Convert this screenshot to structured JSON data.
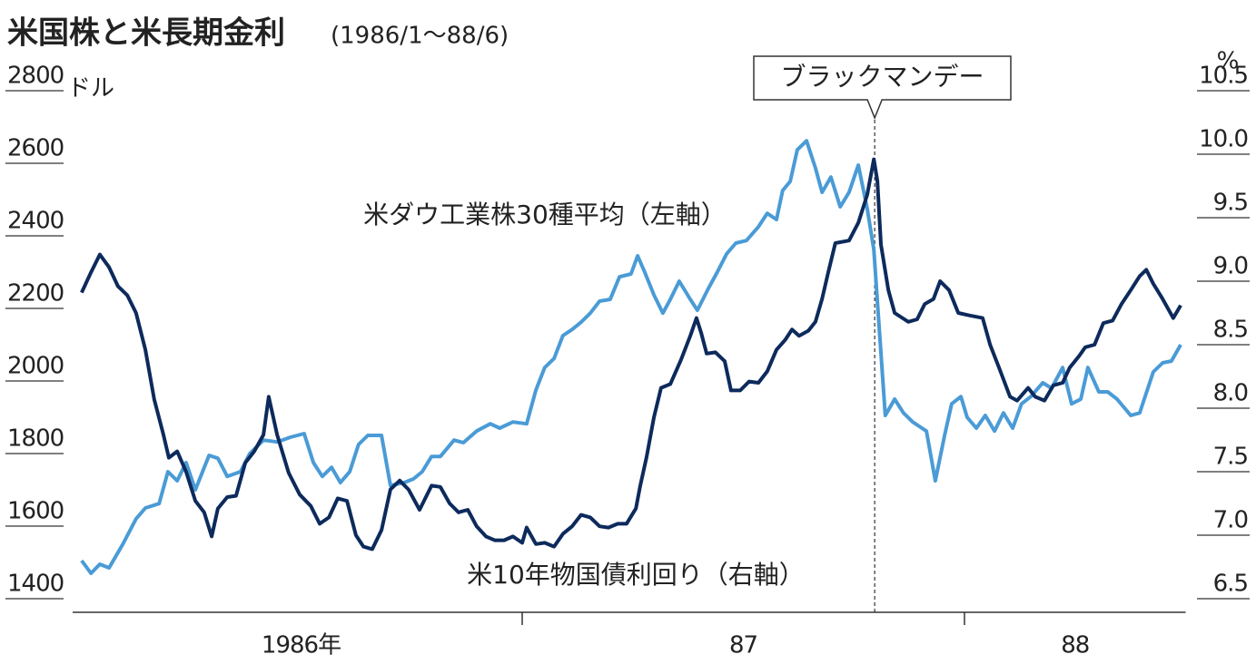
{
  "chart_data": {
    "type": "line",
    "title": "米国株と米長期金利",
    "subtitle": "(1986/1〜88/6)",
    "y_unit": "ドル",
    "y2_unit": "%",
    "xlim": [
      1986,
      1988.5
    ],
    "xticks": [
      1987,
      1988
    ],
    "xlabels": [
      {
        "value": 1986.5,
        "label": "1986年"
      },
      {
        "value": 1987.5,
        "label": "87"
      },
      {
        "value": 1988.25,
        "label": "88"
      }
    ],
    "ylim": [
      1400,
      2800
    ],
    "yticks": [
      1400,
      1600,
      1800,
      2000,
      2200,
      2400,
      2600,
      2800
    ],
    "y2lim": [
      6.5,
      10.5
    ],
    "y2ticks": [
      6.5,
      {
        "value": 7,
        "label": "7.0"
      },
      7.5,
      {
        "value": 8,
        "label": "8.0"
      },
      8.5,
      {
        "value": 9,
        "label": "9.0"
      },
      9.5,
      {
        "value": 10,
        "label": "10.0"
      },
      10.5
    ],
    "event": {
      "label": "ブラックマンデー",
      "x": 1987.797
    },
    "series": [
      {
        "name": "米ダウ工業株30種平均（左軸）",
        "color": "#4a9bd6",
        "x": [
          1986.004,
          1986.025,
          1986.045,
          1986.066,
          1986.097,
          1986.127,
          1986.148,
          1986.179,
          1986.199,
          1986.22,
          1986.24,
          1986.261,
          1986.292,
          1986.312,
          1986.333,
          1986.363,
          1986.384,
          1986.415,
          1986.446,
          1986.476,
          1986.507,
          1986.528,
          1986.548,
          1986.569,
          1986.589,
          1986.61,
          1986.63,
          1986.651,
          1986.682,
          1986.702,
          1986.733,
          1986.754,
          1986.774,
          1986.795,
          1986.815,
          1986.846,
          1986.867,
          1986.897,
          1986.928,
          1986.949,
          1986.979,
          1987.01,
          1987.031,
          1987.051,
          1987.072,
          1987.092,
          1987.113,
          1987.133,
          1987.154,
          1987.175,
          1987.199,
          1987.22,
          1987.246,
          1987.261,
          1987.277,
          1987.298,
          1987.318,
          1987.335,
          1987.355,
          1987.38,
          1987.396,
          1987.421,
          1987.441,
          1987.462,
          1987.483,
          1987.507,
          1987.534,
          1987.554,
          1987.575,
          1987.589,
          1987.606,
          1987.622,
          1987.643,
          1987.663,
          1987.678,
          1987.698,
          1987.719,
          1987.739,
          1987.76,
          1987.78,
          1987.795,
          1987.807,
          1987.821,
          1987.842,
          1987.862,
          1987.883,
          1987.904,
          1987.914,
          1987.934,
          1987.955,
          1987.971,
          1987.992,
          1988.006,
          1988.027,
          1988.047,
          1988.068,
          1988.088,
          1988.109,
          1988.129,
          1988.15,
          1988.177,
          1988.197,
          1988.222,
          1988.242,
          1988.263,
          1988.279,
          1988.304,
          1988.324,
          1988.345,
          1988.376,
          1988.396,
          1988.427,
          1988.448,
          1988.468,
          1988.489
        ],
        "values": [
          1505,
          1470,
          1495,
          1485,
          1550,
          1620,
          1650,
          1662,
          1750,
          1725,
          1775,
          1700,
          1795,
          1787,
          1737,
          1750,
          1800,
          1837,
          1832,
          1845,
          1855,
          1775,
          1737,
          1762,
          1720,
          1750,
          1825,
          1850,
          1850,
          1712,
          1720,
          1730,
          1750,
          1792,
          1792,
          1837,
          1830,
          1862,
          1882,
          1870,
          1887,
          1882,
          1975,
          2037,
          2062,
          2125,
          2142,
          2162,
          2187,
          2220,
          2225,
          2287,
          2295,
          2345,
          2300,
          2237,
          2187,
          2225,
          2275,
          2225,
          2195,
          2255,
          2300,
          2350,
          2380,
          2387,
          2425,
          2462,
          2445,
          2525,
          2550,
          2637,
          2662,
          2587,
          2520,
          2562,
          2480,
          2520,
          2595,
          2475,
          2362,
          2150,
          1905,
          1950,
          1912,
          1887,
          1870,
          1862,
          1725,
          1850,
          1937,
          1957,
          1900,
          1870,
          1905,
          1862,
          1912,
          1870,
          1937,
          1957,
          1995,
          1980,
          2037,
          1937,
          1950,
          2037,
          1970,
          1970,
          1950,
          1905,
          1912,
          2025,
          2050,
          2055,
          2100
        ]
      },
      {
        "name": "米10年物国債利回り（右軸）",
        "color": "#0d2a5c",
        "axis": "y2",
        "x": [
          1986.004,
          1986.025,
          1986.045,
          1986.066,
          1986.086,
          1986.107,
          1986.127,
          1986.148,
          1986.168,
          1986.189,
          1986.201,
          1986.22,
          1986.24,
          1986.261,
          1986.281,
          1986.298,
          1986.312,
          1986.333,
          1986.353,
          1986.374,
          1986.394,
          1986.415,
          1986.427,
          1986.446,
          1986.472,
          1986.497,
          1986.522,
          1986.542,
          1986.563,
          1986.583,
          1986.604,
          1986.624,
          1986.641,
          1986.661,
          1986.682,
          1986.702,
          1986.723,
          1986.743,
          1986.768,
          1986.795,
          1986.815,
          1986.836,
          1986.856,
          1986.877,
          1986.897,
          1986.918,
          1986.938,
          1986.959,
          1986.979,
          1987.0,
          1987.01,
          1987.031,
          1987.051,
          1987.072,
          1987.092,
          1987.113,
          1987.133,
          1987.154,
          1987.175,
          1987.195,
          1987.216,
          1987.236,
          1987.257,
          1987.267,
          1987.281,
          1987.298,
          1987.314,
          1987.335,
          1987.359,
          1987.38,
          1987.394,
          1987.405,
          1987.417,
          1987.437,
          1987.458,
          1987.472,
          1987.493,
          1987.513,
          1987.534,
          1987.554,
          1987.575,
          1987.595,
          1987.61,
          1987.626,
          1987.647,
          1987.663,
          1987.678,
          1987.692,
          1987.708,
          1987.739,
          1987.76,
          1987.78,
          1987.795,
          1987.803,
          1987.811,
          1987.828,
          1987.842,
          1987.873,
          1987.893,
          1987.91,
          1987.93,
          1987.945,
          1987.965,
          1987.986,
          1988.012,
          1988.041,
          1988.058,
          1988.078,
          1988.103,
          1988.119,
          1988.144,
          1988.16,
          1988.181,
          1988.201,
          1988.222,
          1988.238,
          1988.259,
          1988.273,
          1988.294,
          1988.314,
          1988.335,
          1988.355,
          1988.376,
          1988.396,
          1988.411,
          1988.427,
          1988.448,
          1988.472,
          1988.489
        ],
        "values": [
          8.91,
          9.07,
          9.21,
          9.11,
          8.96,
          8.89,
          8.75,
          8.46,
          8.07,
          7.79,
          7.61,
          7.66,
          7.5,
          7.27,
          7.18,
          6.99,
          7.21,
          7.3,
          7.31,
          7.57,
          7.66,
          7.79,
          8.09,
          7.79,
          7.49,
          7.32,
          7.23,
          7.09,
          7.14,
          7.29,
          7.27,
          7.0,
          6.91,
          6.89,
          7.04,
          7.36,
          7.43,
          7.36,
          7.2,
          7.39,
          7.38,
          7.25,
          7.18,
          7.2,
          7.07,
          6.99,
          6.96,
          6.96,
          6.99,
          6.94,
          7.06,
          6.93,
          6.94,
          6.91,
          7.01,
          7.07,
          7.16,
          7.14,
          7.07,
          7.06,
          7.09,
          7.09,
          7.21,
          7.39,
          7.61,
          7.93,
          8.16,
          8.19,
          8.38,
          8.57,
          8.71,
          8.59,
          8.43,
          8.44,
          8.37,
          8.14,
          8.14,
          8.21,
          8.2,
          8.29,
          8.46,
          8.54,
          8.62,
          8.57,
          8.61,
          8.68,
          8.86,
          9.07,
          9.3,
          9.32,
          9.46,
          9.68,
          9.96,
          9.79,
          9.29,
          8.93,
          8.75,
          8.68,
          8.7,
          8.82,
          8.86,
          9.0,
          8.93,
          8.75,
          8.73,
          8.71,
          8.5,
          8.32,
          8.09,
          8.06,
          8.16,
          8.09,
          8.06,
          8.18,
          8.2,
          8.32,
          8.41,
          8.48,
          8.5,
          8.67,
          8.69,
          8.82,
          8.93,
          9.04,
          9.09,
          8.98,
          8.86,
          8.71,
          8.81
        ]
      }
    ]
  }
}
